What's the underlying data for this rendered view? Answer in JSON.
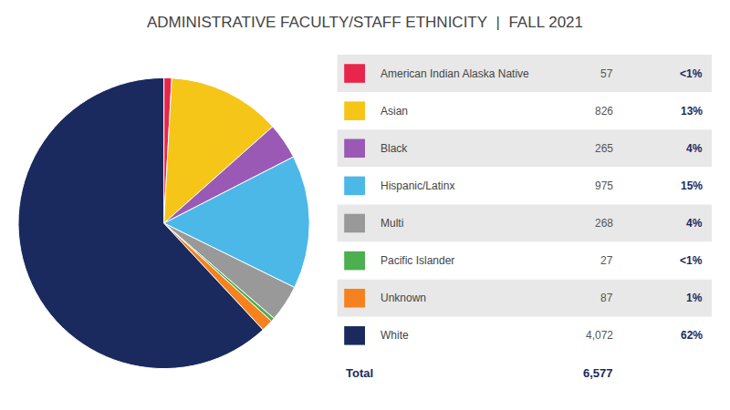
{
  "chart_data": {
    "type": "pie",
    "title": "ADMINISTRATIVE FACULTY/STAFF ETHNICITY  |  FALL 2021",
    "categories": [
      "American Indian Alaska Native",
      "Asian",
      "Black",
      "Hispanic/Latinx",
      "Multi",
      "Pacific Islander",
      "Unknown",
      "White"
    ],
    "values": [
      57,
      826,
      265,
      975,
      268,
      27,
      87,
      4072
    ],
    "value_labels": [
      "57",
      "826",
      "265",
      "975",
      "268",
      "27",
      "87",
      "4,072"
    ],
    "percent_labels": [
      "<1%",
      "13%",
      "4%",
      "15%",
      "4%",
      "<1%",
      "1%",
      "62%"
    ],
    "colors": [
      "#e8254a",
      "#f5c518",
      "#9b59b6",
      "#4bb8e8",
      "#999999",
      "#4caf50",
      "#f5821f",
      "#1a2a5e"
    ],
    "total": {
      "label": "Total",
      "value": 6577,
      "value_label": "6,577"
    }
  }
}
